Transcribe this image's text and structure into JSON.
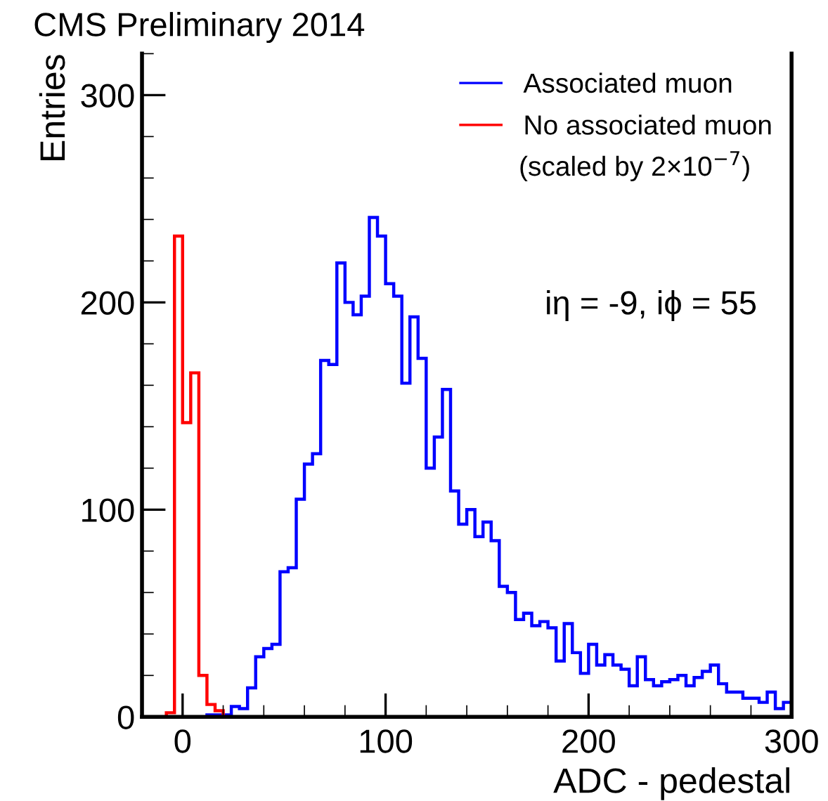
{
  "chart_data": {
    "type": "histogram",
    "title": "CMS Preliminary 2014",
    "xlabel": "ADC - pedestal",
    "ylabel": "Entries",
    "bins": [
      -20,
      -16,
      -12,
      -8,
      -4,
      0,
      4,
      8,
      12,
      16,
      20,
      24,
      28,
      32,
      36,
      40,
      44,
      48,
      52,
      56,
      60,
      64,
      68,
      72,
      76,
      80,
      84,
      88,
      92,
      96,
      100,
      104,
      108,
      112,
      116,
      120,
      124,
      128,
      132,
      136,
      140,
      144,
      148,
      152,
      156,
      160,
      164,
      168,
      172,
      176,
      180,
      184,
      188,
      192,
      196,
      200,
      204,
      208,
      212,
      216,
      220,
      224,
      228,
      232,
      236,
      240,
      244,
      248,
      252,
      256,
      260,
      264,
      268,
      272,
      276,
      280,
      284,
      288,
      292,
      296,
      300
    ],
    "series": [
      {
        "name": "Associated muon",
        "color": "#0000ff",
        "values": [
          0,
          0,
          0,
          0,
          0,
          0,
          0,
          0,
          1,
          1,
          1,
          5,
          4,
          14,
          29,
          33,
          35,
          70,
          72,
          105,
          122,
          127,
          172,
          170,
          219,
          200,
          194,
          203,
          241,
          232,
          209,
          203,
          161,
          193,
          173,
          120,
          135,
          158,
          109,
          93,
          100,
          87,
          94,
          85,
          63,
          60,
          47,
          50,
          44,
          46,
          43,
          27,
          45,
          31,
          21,
          35,
          25,
          30,
          25,
          23,
          15,
          29,
          18,
          15,
          17,
          18,
          20,
          15,
          19,
          22,
          25,
          16,
          12,
          12,
          9,
          9,
          7,
          12,
          4,
          7
        ]
      },
      {
        "name": "No associated muon",
        "color": "#ff0000",
        "values": [
          0,
          0,
          0,
          2,
          232,
          142,
          166,
          20,
          6,
          3,
          0,
          0,
          0,
          0,
          0,
          0,
          0,
          0,
          0,
          0,
          0,
          0,
          0,
          0,
          0,
          0,
          0,
          0,
          0,
          0,
          0,
          0,
          0,
          0,
          0,
          0,
          0,
          0,
          0,
          0,
          0,
          0,
          0,
          0,
          0,
          0,
          0,
          0,
          0,
          0,
          0,
          0,
          0,
          0,
          0,
          0,
          0,
          0,
          0,
          0,
          0,
          0,
          0,
          0,
          0,
          0,
          0,
          0,
          0,
          0,
          0,
          0,
          0,
          0,
          0,
          0,
          0,
          0,
          0,
          0
        ]
      }
    ],
    "xlim": [
      -20,
      300
    ],
    "ylim": [
      0,
      320
    ],
    "xticks": [
      0,
      100,
      200,
      300
    ],
    "yticks": [
      0,
      100,
      200,
      300
    ],
    "legend": "top right",
    "grid": false,
    "annotations": [
      "(scaled by 2×10$^{−7}$)",
      "iη = -9, iϕ = 55"
    ]
  }
}
